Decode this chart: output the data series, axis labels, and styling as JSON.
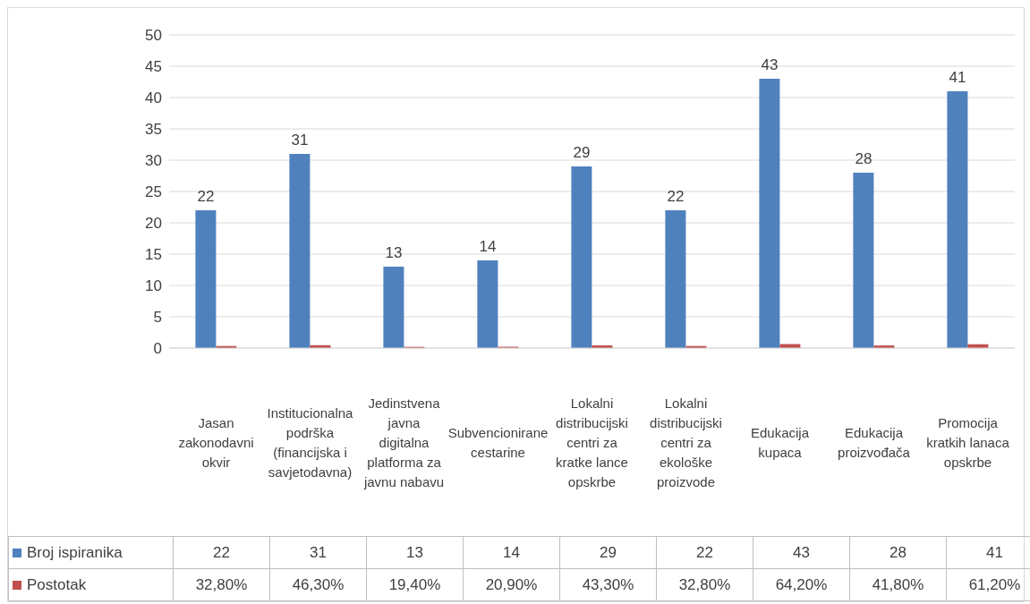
{
  "chart_data": {
    "type": "bar",
    "categories": [
      "Jasan zakonodavni okvir",
      "Institucionalna podrška (financijska i savjetodavna)",
      "Jedinstvena javna digitalna platforma za javnu nabavu",
      "Subvencionirane cestarine",
      "Lokalni distribucijski centri za kratke lance opskrbe",
      "Lokalni distribucijski centri za ekološke proizvode",
      "Edukacija kupaca",
      "Edukacija proizvođača",
      "Promocija kratkih lanaca opskrbe"
    ],
    "series": [
      {
        "name": "Broj ispiranika",
        "color": "#4f81bd",
        "values": [
          22,
          31,
          13,
          14,
          29,
          22,
          43,
          28,
          41
        ],
        "data_labels": true,
        "value_labels": [
          "22",
          "31",
          "13",
          "14",
          "29",
          "22",
          "43",
          "28",
          "41"
        ]
      },
      {
        "name": "Postotak",
        "color": "#c0504d",
        "values": [
          0.328,
          0.463,
          0.194,
          0.209,
          0.433,
          0.328,
          0.642,
          0.418,
          0.612
        ],
        "value_labels": [
          "32,80%",
          "46,30%",
          "19,40%",
          "20,90%",
          "43,30%",
          "32,80%",
          "64,20%",
          "41,80%",
          "61,20%"
        ]
      }
    ],
    "ylim": [
      0,
      50
    ],
    "yticks": [
      0,
      5,
      10,
      15,
      20,
      25,
      30,
      35,
      40,
      45,
      50
    ],
    "grid": "y",
    "legend": "bottom"
  }
}
